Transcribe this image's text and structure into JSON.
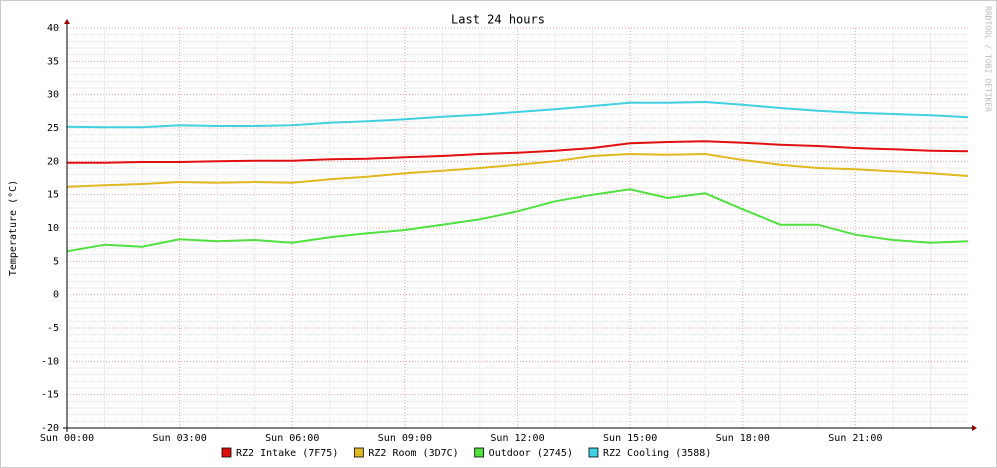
{
  "chart_data": {
    "type": "line",
    "title": "Last 24 hours",
    "y_label": "Temperature (°C)",
    "watermark": "RRDTOOL / TOBI OETIKER",
    "x": [
      0,
      1,
      2,
      3,
      4,
      5,
      6,
      7,
      8,
      9,
      10,
      11,
      12,
      13,
      14,
      15,
      16,
      17,
      18,
      19,
      20,
      21,
      22,
      23,
      24
    ],
    "xlim": [
      0,
      24
    ],
    "xticks": [
      {
        "value": 0,
        "label": "Sun 00:00"
      },
      {
        "value": 3,
        "label": "Sun 03:00"
      },
      {
        "value": 6,
        "label": "Sun 06:00"
      },
      {
        "value": 9,
        "label": "Sun 09:00"
      },
      {
        "value": 12,
        "label": "Sun 12:00"
      },
      {
        "value": 15,
        "label": "Sun 15:00"
      },
      {
        "value": 18,
        "label": "Sun 18:00"
      },
      {
        "value": 21,
        "label": "Sun 21:00"
      }
    ],
    "ylim": [
      -20,
      40
    ],
    "yticks": [
      -20,
      -15,
      -10,
      -5,
      0,
      5,
      10,
      15,
      20,
      25,
      30,
      35,
      40
    ],
    "grid": true,
    "series": [
      {
        "name": "RZ2 Intake (7F75)",
        "color": "#e01010",
        "values": [
          19.8,
          19.8,
          19.9,
          19.9,
          20.0,
          20.1,
          20.1,
          20.3,
          20.4,
          20.6,
          20.8,
          21.1,
          21.3,
          21.6,
          22.0,
          22.7,
          22.9,
          23.0,
          22.8,
          22.5,
          22.3,
          22.0,
          21.8,
          21.6,
          21.5
        ]
      },
      {
        "name": "RZ2 Room (3D7C)",
        "color": "#e0b820",
        "values": [
          16.2,
          16.4,
          16.6,
          16.9,
          16.8,
          16.9,
          16.8,
          17.3,
          17.7,
          18.2,
          18.6,
          19.0,
          19.5,
          20.0,
          20.8,
          21.1,
          21.0,
          21.1,
          20.2,
          19.5,
          19.0,
          18.8,
          18.5,
          18.2,
          17.8
        ]
      },
      {
        "name": "Outdoor (2745)",
        "color": "#50e040",
        "values": [
          6.5,
          7.5,
          7.2,
          8.3,
          8.0,
          8.2,
          7.8,
          8.6,
          9.2,
          9.7,
          10.5,
          11.3,
          12.5,
          14.0,
          15.0,
          15.8,
          14.5,
          15.2,
          12.8,
          10.5,
          10.5,
          9.0,
          8.2,
          7.8,
          8.0
        ]
      },
      {
        "name": "RZ2 Cooling (3588)",
        "color": "#40d0e0",
        "values": [
          25.2,
          25.1,
          25.1,
          25.4,
          25.3,
          25.3,
          25.4,
          25.8,
          26.0,
          26.3,
          26.7,
          27.0,
          27.4,
          27.8,
          28.3,
          28.8,
          28.8,
          28.9,
          28.5,
          28.0,
          27.6,
          27.3,
          27.1,
          26.9,
          26.6
        ]
      }
    ]
  }
}
